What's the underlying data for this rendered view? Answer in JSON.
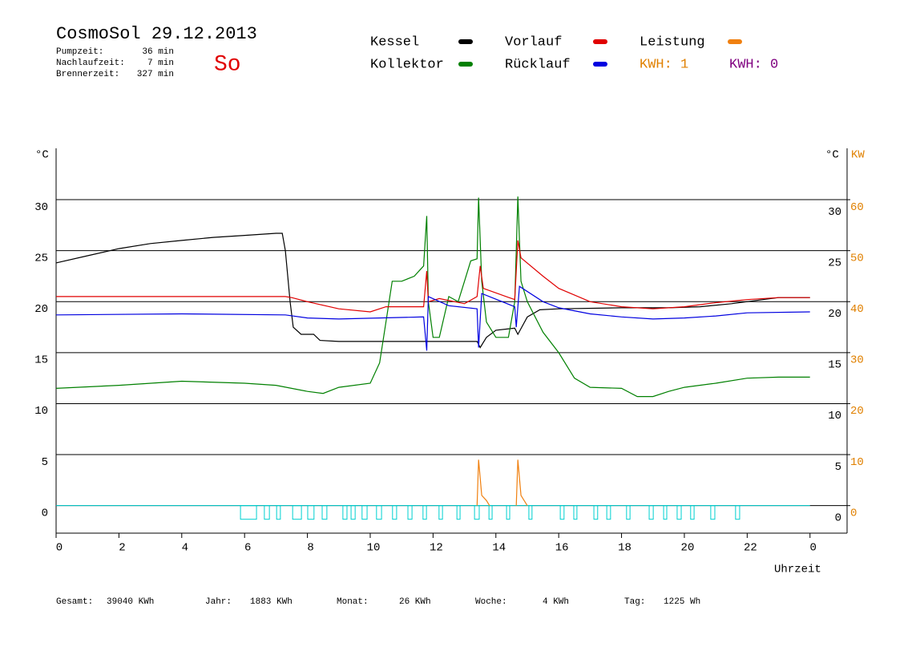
{
  "chart_data": {
    "type": "line",
    "title": "CosmoSol 29.12.2013",
    "weekday": "So",
    "info": [
      {
        "label": "Pumpzeit:",
        "value": "36 min"
      },
      {
        "label": "Nachlaufzeit:",
        "value": "7 min"
      },
      {
        "label": "Brennerzeit:",
        "value": "327 min"
      }
    ],
    "y_label": "°C",
    "y2_label": "°C",
    "y2_unit_label": "KW",
    "x_label": "Uhrzeit",
    "xlim": [
      0,
      25.18
    ],
    "xticks": [
      0,
      2,
      4,
      6,
      8,
      10,
      12,
      14,
      16,
      18,
      20,
      22,
      {
        "value": 24,
        "label": "0"
      }
    ],
    "ylim": [
      -2.7,
      34.8
    ],
    "yticks": [
      0,
      5,
      10,
      15,
      20,
      25,
      30
    ],
    "y2lim": [
      -5.4,
      69.6
    ],
    "y2ticks": [
      0,
      10,
      20,
      30,
      40,
      50,
      60
    ],
    "y2_color": "#e08000",
    "grid": true,
    "series": [
      {
        "name": "Kessel",
        "color": "#000000",
        "x": [
          0,
          1,
          2,
          3,
          4,
          5,
          6,
          7,
          7.2,
          7.3,
          7.45,
          7.55,
          7.8,
          8.2,
          8.4,
          9,
          11.8,
          13.4,
          13.5,
          13.7,
          14,
          14.6,
          14.7,
          15,
          15.4,
          16,
          18,
          19.5,
          20.5,
          21.5,
          22.5,
          23,
          24
        ],
        "values": [
          23.8,
          24.5,
          25.2,
          25.7,
          26.0,
          26.3,
          26.5,
          26.7,
          26.7,
          25,
          20,
          17.5,
          16.8,
          16.8,
          16.2,
          16.1,
          16.1,
          16.1,
          15.5,
          16.5,
          17.2,
          17.4,
          16.8,
          18.5,
          19.2,
          19.3,
          19.4,
          19.4,
          19.5,
          19.8,
          20.2,
          20.4,
          20.4
        ]
      },
      {
        "name": "Kollektor",
        "color": "#008000",
        "x": [
          0,
          2,
          4,
          6,
          7,
          8,
          8.5,
          9,
          10,
          10.3,
          10.5,
          10.7,
          11,
          11.4,
          11.7,
          11.8,
          11.85,
          12,
          12.2,
          12.5,
          12.8,
          13,
          13.2,
          13.4,
          13.45,
          13.55,
          13.7,
          14,
          14.4,
          14.6,
          14.7,
          14.8,
          15,
          15.5,
          16,
          16.5,
          17,
          18,
          18.5,
          19,
          19.5,
          20,
          21,
          22,
          23,
          24
        ],
        "values": [
          11.5,
          11.8,
          12.2,
          12.0,
          11.8,
          11.2,
          11.0,
          11.6,
          12.0,
          14,
          18,
          22,
          22,
          22.5,
          23.5,
          28.4,
          20,
          16.5,
          16.5,
          20.5,
          20,
          22,
          24,
          24.2,
          30.2,
          22,
          18,
          16.5,
          16.5,
          20,
          30.3,
          22,
          20,
          17,
          15,
          12.5,
          11.6,
          11.5,
          10.7,
          10.7,
          11.2,
          11.6,
          12.0,
          12.5,
          12.6,
          12.6
        ]
      },
      {
        "name": "Vorlauf",
        "color": "#e00000",
        "x": [
          0,
          7.3,
          7.5,
          8,
          9,
          10,
          10.5,
          11.7,
          11.8,
          11.85,
          12.2,
          13,
          13.4,
          13.5,
          13.6,
          14.6,
          14.7,
          14.8,
          15.5,
          16,
          17,
          18,
          19,
          20,
          21,
          22,
          23,
          24
        ],
        "values": [
          20.5,
          20.5,
          20.4,
          20.0,
          19.3,
          19.0,
          19.5,
          19.5,
          23,
          20,
          20.3,
          19.8,
          20.5,
          23.5,
          21.3,
          20.2,
          26.0,
          24.3,
          22.5,
          21.3,
          20,
          19.5,
          19.3,
          19.5,
          19.9,
          20.2,
          20.4,
          20.4
        ]
      },
      {
        "name": "Rücklauf",
        "color": "#0000e0",
        "x": [
          0,
          4,
          7.3,
          8,
          9,
          11.7,
          11.8,
          11.85,
          12.5,
          13.4,
          13.45,
          13.55,
          14.6,
          14.65,
          14.75,
          15.5,
          16,
          17,
          18,
          19,
          20,
          21,
          22,
          24
        ],
        "values": [
          18.7,
          18.8,
          18.7,
          18.4,
          18.3,
          18.5,
          15.2,
          20.5,
          19.6,
          19.3,
          15.5,
          20.8,
          19.5,
          17.5,
          21.5,
          20,
          19.4,
          18.8,
          18.5,
          18.3,
          18.4,
          18.6,
          18.9,
          19.0
        ]
      },
      {
        "name": "Leistung",
        "color": "#f08010",
        "axis": "y2",
        "x": [
          13.4,
          13.45,
          13.55,
          13.7,
          13.8,
          14.2,
          14.65,
          14.7,
          14.8,
          15.0
        ],
        "values": [
          0,
          9,
          2,
          1,
          0,
          null,
          0,
          9,
          2,
          0
        ]
      }
    ],
    "kwh_labels": [
      {
        "text": "KWH: 1",
        "color": "#e08000"
      },
      {
        "text": "KWH: 0",
        "color": "#800080"
      }
    ],
    "pump_color": "#00d0d0",
    "pump_intervals": [
      [
        5.87,
        6.38
      ],
      [
        6.63,
        6.79
      ],
      [
        7.02,
        7.14
      ],
      [
        7.53,
        7.81
      ],
      [
        8.01,
        8.21
      ],
      [
        8.47,
        8.62
      ],
      [
        9.13,
        9.26
      ],
      [
        9.39,
        9.52
      ],
      [
        9.74,
        9.9
      ],
      [
        10.2,
        10.36
      ],
      [
        10.71,
        10.84
      ],
      [
        11.2,
        11.33
      ],
      [
        11.68,
        11.79
      ],
      [
        12.19,
        12.3
      ],
      [
        12.76,
        12.86
      ],
      [
        13.32,
        13.47
      ],
      [
        13.78,
        13.88
      ],
      [
        14.34,
        14.44
      ],
      [
        15.05,
        15.15
      ],
      [
        16.05,
        16.17
      ],
      [
        16.48,
        16.58
      ],
      [
        17.12,
        17.24
      ],
      [
        17.53,
        17.65
      ],
      [
        18.16,
        18.27
      ],
      [
        18.88,
        19.01
      ],
      [
        19.34,
        19.44
      ],
      [
        19.77,
        19.9
      ],
      [
        20.2,
        20.31
      ],
      [
        20.84,
        20.97
      ],
      [
        21.63,
        21.76
      ]
    ],
    "totals": [
      {
        "label": "Gesamt:",
        "value": "39040 KWh"
      },
      {
        "label": "Jahr:",
        "value": "1883 KWh"
      },
      {
        "label": "Monat:",
        "value": "26 KWh"
      },
      {
        "label": "Woche:",
        "value": "4 KWh"
      },
      {
        "label": "Tag:",
        "value": "1225 Wh"
      }
    ]
  }
}
